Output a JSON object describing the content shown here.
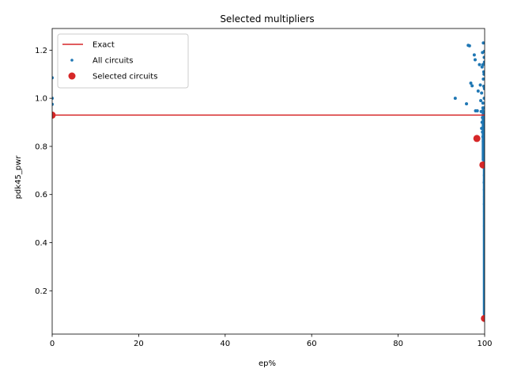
{
  "chart_data": {
    "type": "scatter",
    "title": "Selected multipliers",
    "xlabel": "ep%",
    "ylabel": "pdk45_pwr",
    "xlim": [
      0,
      100
    ],
    "ylim": [
      0.02,
      1.29
    ],
    "xticks": [
      0,
      20,
      40,
      60,
      80,
      100
    ],
    "yticks": [
      0.2,
      0.4,
      0.6,
      0.8,
      1.0,
      1.2
    ],
    "xtick_labels": [
      "0",
      "20",
      "40",
      "60",
      "80",
      "100"
    ],
    "ytick_labels": [
      "0.2",
      "0.4",
      "0.6",
      "0.8",
      "1.0",
      "1.2"
    ],
    "grid": false,
    "legend_position": "top-left",
    "colors": {
      "exact": "#d62728",
      "all": "#1f77b4",
      "selected": "#d62728"
    },
    "series": [
      {
        "name": "Exact",
        "kind": "hline",
        "y": 0.93
      },
      {
        "name": "All circuits",
        "kind": "scatter",
        "points": [
          [
            0,
            1.085
          ],
          [
            0,
            1.0
          ],
          [
            0,
            0.975
          ],
          [
            0,
            0.93
          ],
          [
            93.2,
            1.0
          ],
          [
            95.8,
            0.977
          ],
          [
            96.2,
            1.22
          ],
          [
            96.5,
            1.218
          ],
          [
            96.8,
            1.063
          ],
          [
            97.1,
            1.052
          ],
          [
            97.6,
            1.18
          ],
          [
            97.8,
            1.16
          ],
          [
            97.9,
            0.948
          ],
          [
            98.3,
            0.948
          ],
          [
            98.5,
            1.03
          ],
          [
            98.8,
            1.14
          ],
          [
            99.0,
            1.055
          ],
          [
            99.1,
            0.99
          ],
          [
            99.2,
            0.945
          ],
          [
            99.3,
            1.022
          ],
          [
            99.4,
            1.13
          ],
          [
            99.5,
            1.19
          ],
          [
            99.6,
            1.14
          ],
          [
            99.7,
            1.23
          ],
          [
            99.7,
            1.08
          ],
          [
            99.8,
            1.11
          ],
          [
            99.8,
            1.05
          ],
          [
            99.9,
            1.17
          ],
          [
            99.9,
            1.0
          ],
          [
            99.95,
            1.195
          ],
          [
            99.6,
            0.98
          ],
          [
            99.5,
            0.92
          ],
          [
            99.4,
            0.9
          ],
          [
            99.3,
            0.875
          ],
          [
            99.5,
            0.86
          ],
          [
            99.6,
            0.84
          ],
          [
            99.7,
            0.82
          ],
          [
            99.8,
            0.79
          ],
          [
            99.9,
            0.77
          ],
          [
            99.85,
            0.74
          ],
          [
            99.9,
            0.71
          ],
          [
            99.95,
            0.68
          ],
          [
            99.9,
            0.65
          ],
          [
            99.95,
            0.62
          ],
          [
            99.98,
            0.59
          ],
          [
            99.95,
            0.56
          ],
          [
            99.98,
            0.53
          ],
          [
            99.99,
            0.5
          ],
          [
            99.98,
            0.47
          ],
          [
            99.99,
            0.44
          ],
          [
            99.99,
            0.41
          ],
          [
            100,
            0.38
          ],
          [
            99.99,
            0.35
          ],
          [
            100,
            0.32
          ],
          [
            100,
            0.29
          ],
          [
            100,
            0.26
          ],
          [
            100,
            0.23
          ],
          [
            100,
            0.2
          ],
          [
            100,
            0.17
          ],
          [
            100,
            0.14
          ],
          [
            100,
            0.12
          ],
          [
            100,
            0.1
          ],
          [
            99.9,
            0.96
          ],
          [
            99.7,
            0.94
          ],
          [
            99.8,
            0.905
          ],
          [
            99.9,
            0.885
          ],
          [
            99.6,
            0.96
          ],
          [
            99.95,
            1.04
          ],
          [
            99.85,
            1.1
          ],
          [
            99.95,
            1.15
          ],
          [
            99.9,
            0.8
          ],
          [
            99.95,
            0.76
          ],
          [
            99.97,
            0.66
          ],
          [
            99.99,
            0.58
          ],
          [
            99.99,
            0.45
          ],
          [
            100,
            0.36
          ],
          [
            100,
            0.22
          ],
          [
            100,
            0.15
          ]
        ]
      },
      {
        "name": "Selected circuits",
        "kind": "scatter",
        "points": [
          [
            0,
            0.93
          ],
          [
            98.2,
            0.833
          ],
          [
            99.6,
            0.723
          ],
          [
            99.95,
            0.085
          ]
        ]
      }
    ]
  }
}
